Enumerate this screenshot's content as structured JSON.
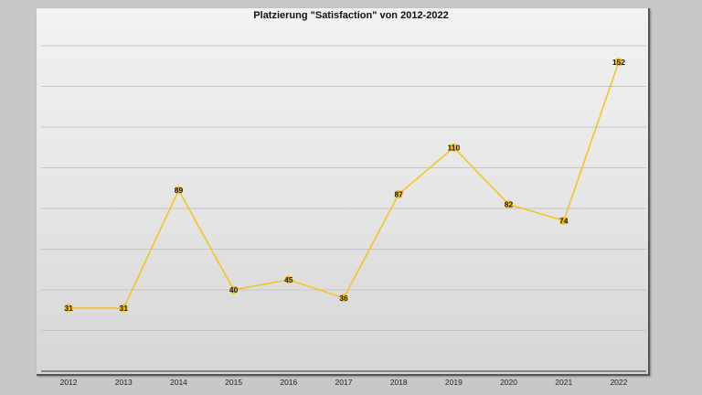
{
  "chart_data": {
    "type": "line",
    "title": "Platzierung \"Satisfaction\" von 2012-2022",
    "xlabel": "",
    "ylabel": "",
    "categories": [
      "2012",
      "2013",
      "2014",
      "2015",
      "2016",
      "2017",
      "2018",
      "2019",
      "2020",
      "2021",
      "2022"
    ],
    "series": [
      {
        "name": "Platzierung",
        "values": [
          31,
          31,
          89,
          40,
          45,
          36,
          87,
          110,
          82,
          74,
          152
        ],
        "color": "#f5c21b"
      }
    ],
    "ylim": [
      0,
      160
    ],
    "ygrid_step": 20,
    "grid": true,
    "y_tick_labels_visible": false,
    "legend": "none",
    "data_labels": true
  },
  "colors": {
    "background": "#c8c8c8",
    "line": "#f5c21b",
    "marker": "#f5c21b",
    "gridline": "#c4c4c4",
    "axis": "#555555"
  }
}
